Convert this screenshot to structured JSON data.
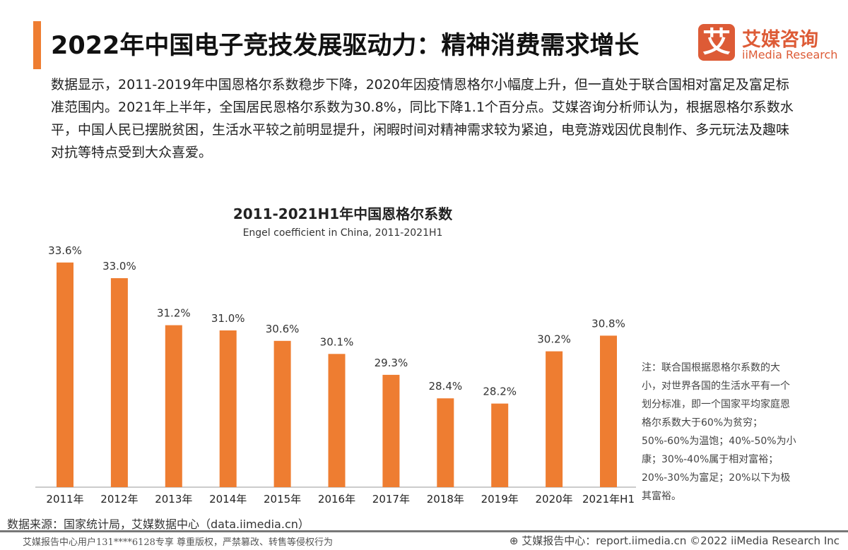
{
  "header": {
    "title": "2022年中国电子竞技发展驱动力：精神消费需求增长",
    "accent_color": "#ee7d31"
  },
  "logo": {
    "glyph": "艾",
    "cn": "艾媒咨询",
    "en": "iiMedia Research",
    "color": "#dd5b36"
  },
  "intro": "数据显示，2011-2019年中国恩格尔系数稳步下降，2020年因疫情恩格尔小幅度上升，但一直处于联合国相对富足及富足标准范围内。2021年上半年，全国居民恩格尔系数为30.8%，同比下降1.1个百分点。艾媒咨询分析师认为，根据恩格尔系数水平，中国人民已摆脱贫困，生活水平较之前明显提升，闲暇时间对精神需求较为紧迫，电竞游戏因优良制作、多元玩法及趣味对抗等特点受到大众喜爱。",
  "chart_data": {
    "type": "bar",
    "title": "2011-2021H1年中国恩格尔系数",
    "subtitle": "Engel coefficient in China, 2011-2021H1",
    "categories": [
      "2011年",
      "2012年",
      "2013年",
      "2014年",
      "2015年",
      "2016年",
      "2017年",
      "2018年",
      "2019年",
      "2020年",
      "2021年H1"
    ],
    "values": [
      33.6,
      33.0,
      31.2,
      31.0,
      30.6,
      30.1,
      29.3,
      28.4,
      28.2,
      30.2,
      30.8
    ],
    "labels": [
      "33.6%",
      "33.0%",
      "31.2%",
      "31.0%",
      "30.6%",
      "30.1%",
      "29.3%",
      "28.4%",
      "28.2%",
      "30.2%",
      "30.8%"
    ],
    "unit": "%",
    "bar_color": "#ee7d31",
    "grid": false,
    "legend": "none",
    "ylim": [
      25,
      34
    ]
  },
  "note": "注：联合国根据恩格尔系数的大小，对世界各国的生活水平有一个划分标准，即一个国家平均家庭恩格尔系数大于60%为贫穷；50%-60%为温饱；40%-50%为小康；30%-40%属于相对富裕；20%-30%为富足；20%以下为极其富裕。",
  "source": "数据来源：国家统计局，艾媒数据中心（data.iimedia.cn）",
  "footer": {
    "left": "艾媒报告中心用户131****6128专享 尊重版权，严禁篡改、转售等侵权行为",
    "right": "艾媒报告中心：report.iimedia.cn  ©2022  iiMedia Research Inc"
  }
}
